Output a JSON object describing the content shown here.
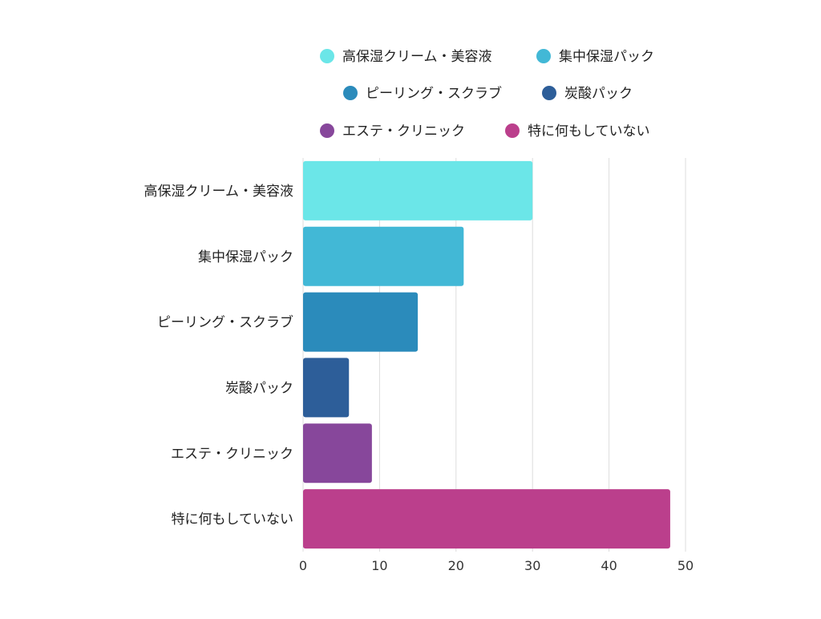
{
  "chart_data": {
    "type": "bar",
    "orientation": "horizontal",
    "categories": [
      "高保湿クリーム・美容液",
      "集中保湿パック",
      "ピーリング・スクラブ",
      "炭酸パック",
      "エステ・クリニック",
      "特に何もしていない"
    ],
    "values": [
      30,
      21,
      15,
      6,
      9,
      48
    ],
    "colors": [
      "#6be6e8",
      "#42b8d6",
      "#2b8bbb",
      "#2d5e99",
      "#87479b",
      "#bb3f8c"
    ],
    "xlim": [
      0,
      50
    ],
    "x_ticks": [
      "0",
      "10",
      "20",
      "30",
      "40",
      "50"
    ],
    "grid": "vertical",
    "legend": {
      "placement": "top",
      "entries": [
        "高保湿クリーム・美容液",
        "集中保湿パック",
        "ピーリング・スクラブ",
        "炭酸パック",
        "エステ・クリニック",
        "特に何もしていない"
      ]
    }
  }
}
